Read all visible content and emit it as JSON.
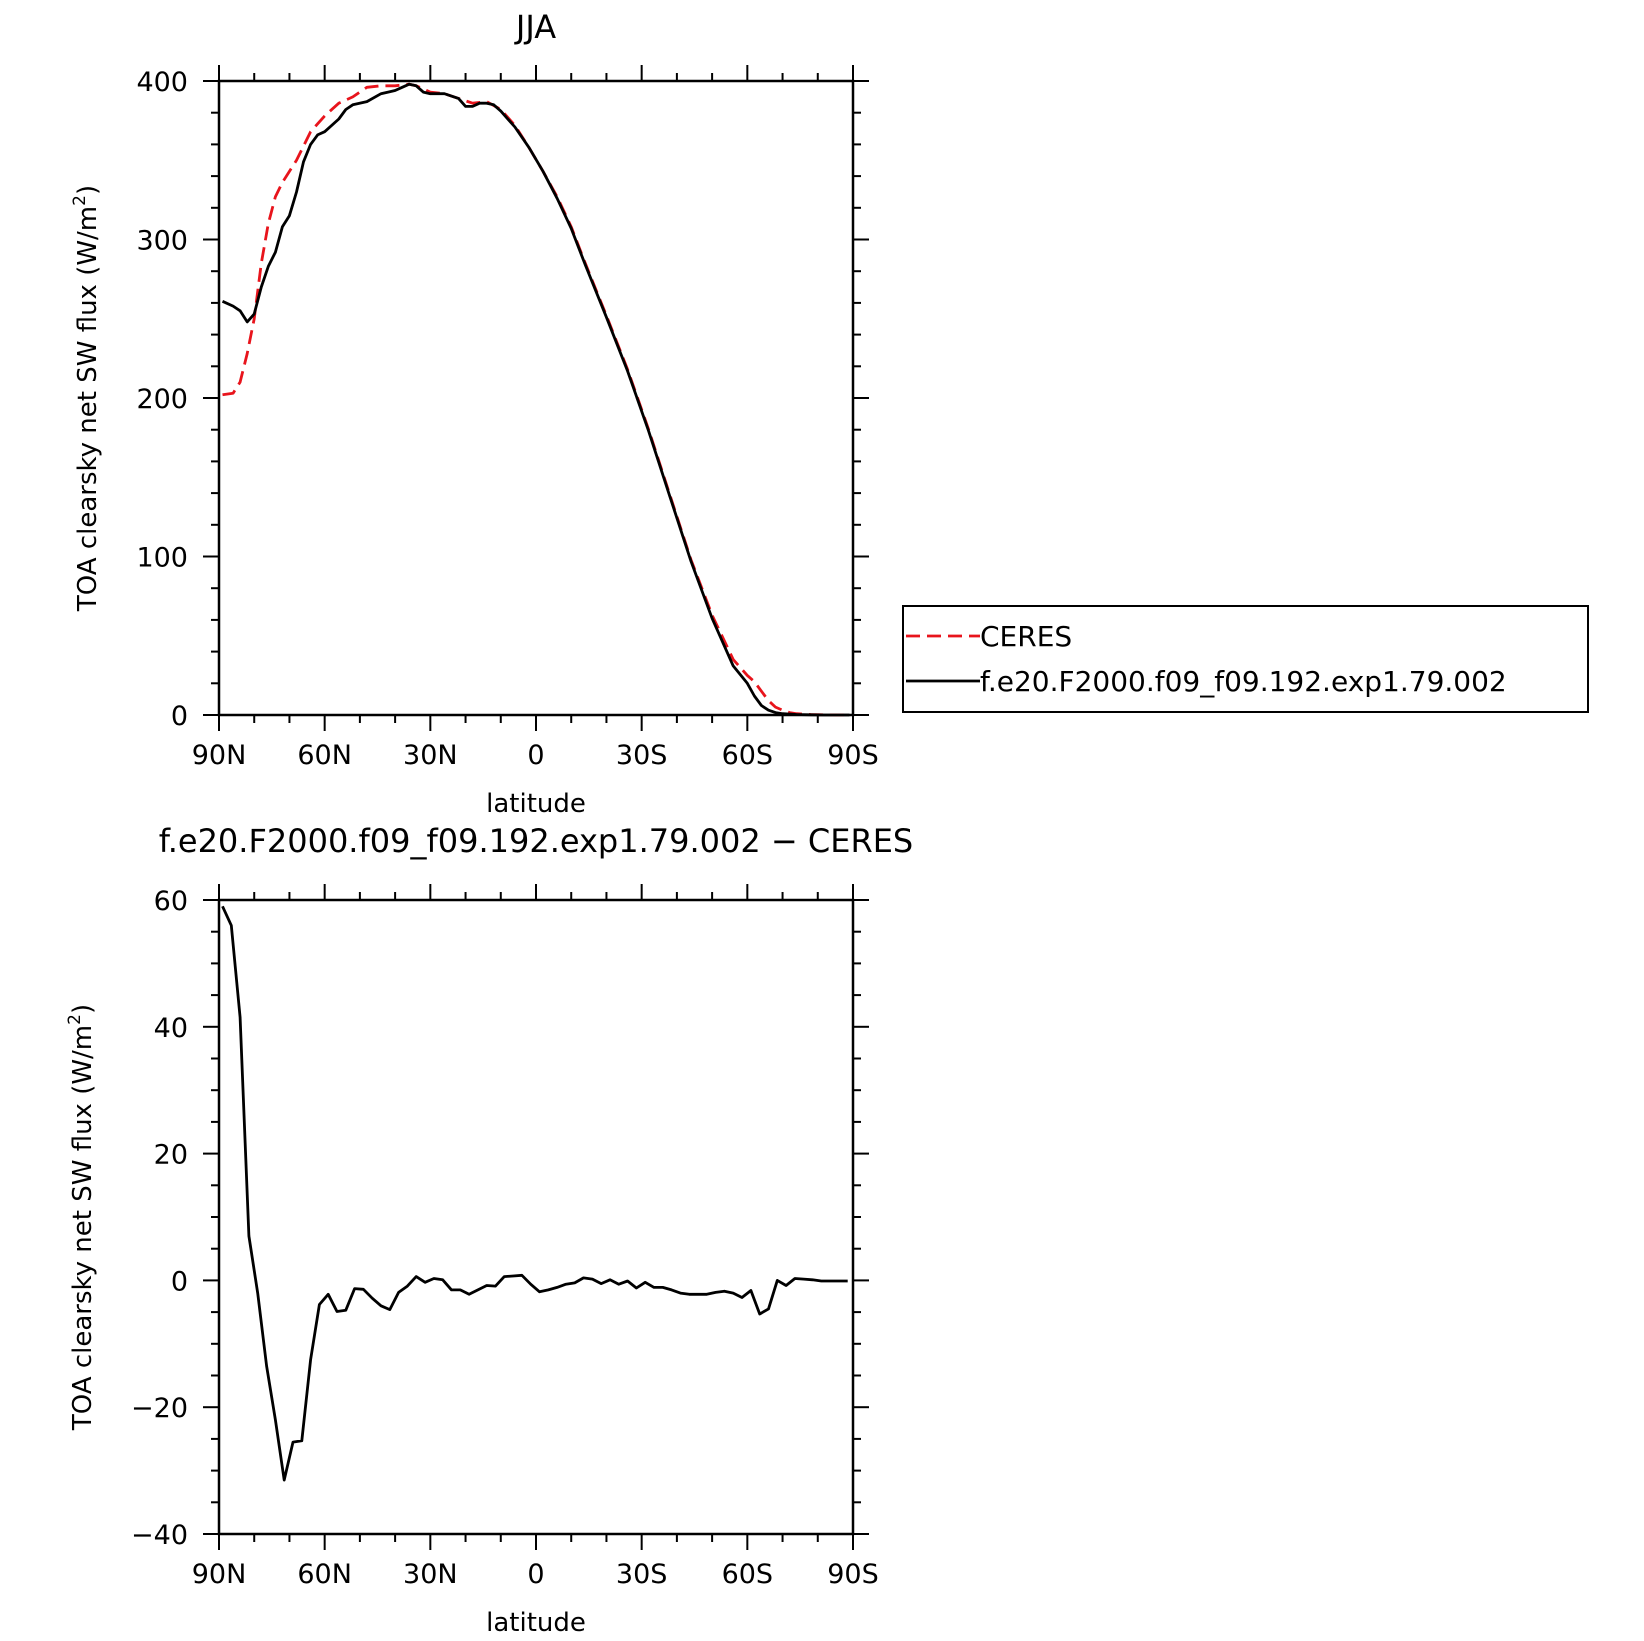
{
  "chart_data": [
    {
      "type": "line",
      "title": "JJA",
      "xlabel": "latitude",
      "ylabel": "TOA clearsky net SW flux (W/m",
      "ylabel_sup": "2",
      "ylabel_end": ")",
      "xlim": [
        90,
        -90
      ],
      "ylim": [
        0,
        400
      ],
      "x_ticks": [
        {
          "value": 90,
          "label": "90N"
        },
        {
          "value": 60,
          "label": "60N"
        },
        {
          "value": 30,
          "label": "30N"
        },
        {
          "value": 0,
          "label": "0"
        },
        {
          "value": -30,
          "label": "30S"
        },
        {
          "value": -60,
          "label": "60S"
        },
        {
          "value": -90,
          "label": "90S"
        }
      ],
      "y_ticks": [
        {
          "value": 0,
          "label": "0"
        },
        {
          "value": 100,
          "label": "100"
        },
        {
          "value": 200,
          "label": "200"
        },
        {
          "value": 300,
          "label": "300"
        },
        {
          "value": 400,
          "label": "400"
        }
      ],
      "legend_position": "right",
      "series": [
        {
          "name": "CERES",
          "color": "#e8141c",
          "dash": "dashed",
          "x": [
            89,
            86,
            84,
            82,
            80,
            78,
            76,
            74,
            72,
            68,
            64,
            60,
            56,
            52,
            48,
            44,
            40,
            36,
            34,
            32,
            30,
            26,
            22,
            18,
            14,
            10,
            6,
            2,
            -2,
            -6,
            -10,
            -14,
            -20,
            -26,
            -32,
            -38,
            -44,
            -50,
            -56,
            -60,
            -62,
            -64,
            -66,
            -68,
            -70,
            -72,
            -74,
            -78,
            -82,
            -86,
            -89
          ],
          "y": [
            202,
            203,
            210,
            228,
            250,
            285,
            310,
            327,
            336,
            350,
            368,
            378,
            386,
            390,
            396,
            397,
            397,
            398,
            397,
            395,
            393,
            392,
            389,
            386,
            387,
            382,
            372,
            358,
            343,
            327,
            308,
            285,
            252,
            218,
            180,
            139,
            98,
            63,
            35,
            25,
            21,
            15,
            9,
            5,
            3,
            1.5,
            0.8,
            0.3,
            0.1,
            0,
            0
          ]
        },
        {
          "name": "f.e20.F2000.f09_f09.192.exp1.79.002",
          "color": "#000000",
          "dash": "solid",
          "x": [
            89,
            86,
            84,
            82,
            80,
            78,
            76,
            74,
            72,
            70,
            68,
            66,
            64,
            62,
            60,
            56,
            54,
            52,
            48,
            44,
            42,
            40,
            38,
            36,
            34,
            32,
            30,
            28,
            26,
            22,
            20,
            18,
            16,
            14,
            12,
            10,
            6,
            2,
            -2,
            -6,
            -10,
            -14,
            -20,
            -26,
            -32,
            -38,
            -44,
            -50,
            -56,
            -60,
            -62,
            -64,
            -66,
            -68,
            -70,
            -74,
            -78,
            -82,
            -86,
            -89
          ],
          "y": [
            261,
            258,
            255,
            248,
            253,
            270,
            283,
            292,
            308,
            315,
            330,
            349,
            360,
            366,
            368,
            376,
            382,
            385,
            387,
            392,
            393,
            394,
            396,
            398,
            397,
            393,
            392,
            392,
            392,
            389,
            384,
            384,
            386,
            386,
            385,
            381,
            371,
            358,
            343,
            326,
            307,
            284,
            251,
            217,
            179,
            138,
            97,
            61,
            31,
            20,
            12,
            6,
            3,
            1.5,
            0.8,
            0.3,
            0.1,
            0,
            0,
            0
          ]
        }
      ]
    },
    {
      "type": "line",
      "title": "f.e20.F2000.f09_f09.192.exp1.79.002 − CERES",
      "xlabel": "latitude",
      "ylabel": "TOA clearsky net SW flux (W/m",
      "ylabel_sup": "2",
      "ylabel_end": ")",
      "xlim": [
        90,
        -90
      ],
      "ylim": [
        -40,
        60
      ],
      "x_ticks": [
        {
          "value": 90,
          "label": "90N"
        },
        {
          "value": 60,
          "label": "60N"
        },
        {
          "value": 30,
          "label": "30N"
        },
        {
          "value": 0,
          "label": "0"
        },
        {
          "value": -30,
          "label": "30S"
        },
        {
          "value": -60,
          "label": "60S"
        },
        {
          "value": -90,
          "label": "90S"
        }
      ],
      "y_ticks": [
        {
          "value": -40,
          "label": "−40"
        },
        {
          "value": -20,
          "label": "−20"
        },
        {
          "value": 0,
          "label": "0"
        },
        {
          "value": 20,
          "label": "20"
        },
        {
          "value": 40,
          "label": "40"
        },
        {
          "value": 60,
          "label": "60"
        }
      ],
      "series": [
        {
          "color": "#000000",
          "dash": "solid",
          "x": [
            89,
            86.5,
            84,
            81.5,
            79,
            76.5,
            74,
            71.5,
            69,
            66.5,
            64,
            61.5,
            59,
            56.5,
            54,
            51.5,
            49,
            46.5,
            44,
            41.5,
            39,
            36.5,
            34,
            31.5,
            29,
            26.5,
            24,
            21.5,
            19,
            16.5,
            14,
            11.5,
            9,
            6.5,
            4,
            1.5,
            -1,
            -3.5,
            -6,
            -8.5,
            -11,
            -13.5,
            -16,
            -18.5,
            -21,
            -23.5,
            -26,
            -28.5,
            -31,
            -33.5,
            -36,
            -38.5,
            -41,
            -43.5,
            -46,
            -48.5,
            -51,
            -53.5,
            -56,
            -58.5,
            -61,
            -63.5,
            -66,
            -68.5,
            -71,
            -73.5,
            -76,
            -78.5,
            -81,
            -83.5,
            -86,
            -88.5
          ],
          "y": [
            59,
            56,
            41.5,
            7,
            -2,
            -13.5,
            -22,
            -31.5,
            -25.5,
            -25.3,
            -12.5,
            -3.8,
            -2.2,
            -4.9,
            -4.7,
            -1.3,
            -1.4,
            -2.8,
            -4,
            -4.6,
            -1.9,
            -0.9,
            0.6,
            -0.3,
            0.3,
            0.1,
            -1.5,
            -1.5,
            -2.2,
            -1.5,
            -0.8,
            -0.9,
            0.6,
            0.7,
            0.8,
            -0.6,
            -1.8,
            -1.5,
            -1.1,
            -0.6,
            -0.4,
            0.4,
            0.2,
            -0.5,
            0.1,
            -0.6,
            -0.1,
            -1.2,
            -0.3,
            -1.1,
            -1.1,
            -1.5,
            -2,
            -2.2,
            -2.2,
            -2.2,
            -1.9,
            -1.7,
            -2,
            -2.7,
            -1.6,
            -5.3,
            -4.5,
            0,
            -0.8,
            0.3,
            0.2,
            0.1,
            -0.1,
            -0.1,
            -0.1,
            -0.1
          ]
        }
      ]
    }
  ]
}
